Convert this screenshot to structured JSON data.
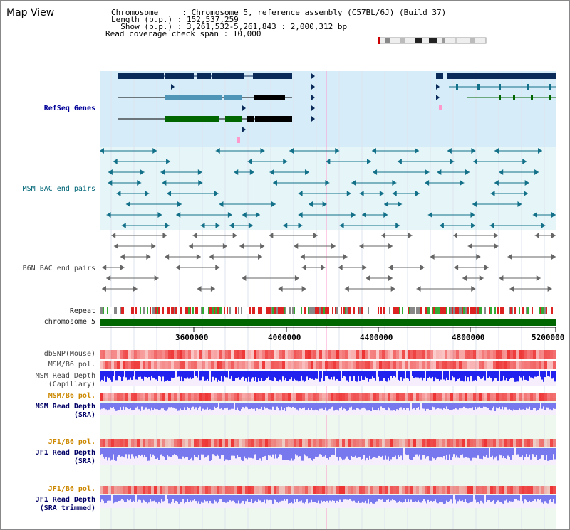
{
  "title": "Map View",
  "info": {
    "chromosome_line": "Chromosome     : Chromosome 5, reference assembly (C57BL/6J) (Build 37)",
    "length_line": "Length (b.p.) : 152,537,259",
    "show_line": "  Show (b.p.) : 3,261,532-5,261,843 : 2,000,312 bp",
    "coverage_line": "Read coverage check span : 10,000"
  },
  "tracks": {
    "refseq_label": "RefSeq Genes",
    "msm_bac_label": "MSM BAC end pairs",
    "b6n_bac_label": "B6N BAC end pairs",
    "repeat_label": "Repeat",
    "chromosome_label": "chromosome 5",
    "dbsnp_label": "dbSNP(Mouse)",
    "msm_b6_pol_label": "MSM/B6 pol.",
    "msm_depth_cap_label_1": "MSM Read Depth",
    "msm_depth_cap_label_2": "(Capillary)",
    "msm_b6_pol_sra_label": "MSM/B6 pol.",
    "msm_depth_sra_label_1": "MSM Read Depth",
    "msm_depth_sra_label_2": "(SRA)",
    "jf1_b6_pol_label": "JF1/B6 pol.",
    "jf1_depth_sra_label_1": "JF1 Read Depth",
    "jf1_depth_sra_label_2": "(SRA)",
    "jf1_b6_pol_trim_label": "JF1/B6 pol.",
    "jf1_depth_trim_label_1": "JF1 Read Depth",
    "jf1_depth_trim_label_2": "(SRA trimmed)"
  },
  "axis": {
    "ticks": [
      "3600000",
      "4000000",
      "4400000",
      "4800000",
      "5200000"
    ]
  },
  "colors": {
    "refseq_bg": "#d6ecf8",
    "bac_bg": "#e6f6f8",
    "gene_navy": "#0a2a5a",
    "gene_steel": "#4f95b8",
    "gene_green": "#006600",
    "msm_bac": "#137089",
    "b6n_bac": "#666666",
    "chromosome": "#006600",
    "depth_blue": "#2222ee",
    "depth_light": "#7777ee",
    "pol_red": "#ee3333",
    "selection_line": "#ff99cc"
  }
}
